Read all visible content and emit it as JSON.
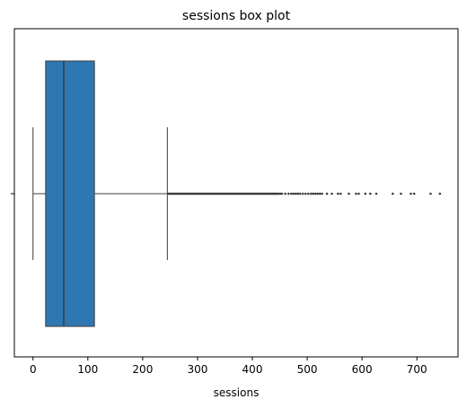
{
  "chart_data": {
    "type": "box",
    "title": "sessions box plot",
    "xlabel": "sessions",
    "ylabel": "",
    "orientation": "horizontal",
    "xlim": [
      -34,
      775
    ],
    "xticks": [
      0,
      100,
      200,
      300,
      400,
      500,
      600,
      700
    ],
    "xtick_labels": [
      "0",
      "100",
      "200",
      "300",
      "400",
      "500",
      "600",
      "700"
    ],
    "grid": false,
    "box": {
      "whisker_low": 0,
      "q1": 23,
      "median": 56,
      "q3": 112,
      "whisker_high": 245
    },
    "outliers": [
      247,
      249,
      251,
      253,
      255,
      257,
      259,
      261,
      263,
      265,
      267,
      269,
      271,
      273,
      275,
      277,
      279,
      281,
      283,
      285,
      287,
      289,
      291,
      293,
      295,
      297,
      299,
      301,
      303,
      305,
      307,
      309,
      311,
      313,
      315,
      317,
      319,
      321,
      323,
      325,
      327,
      329,
      331,
      333,
      335,
      337,
      339,
      341,
      343,
      345,
      347,
      349,
      351,
      353,
      355,
      357,
      359,
      361,
      363,
      365,
      367,
      369,
      371,
      373,
      375,
      377,
      379,
      381,
      383,
      385,
      387,
      389,
      391,
      393,
      395,
      397,
      399,
      401,
      403,
      405,
      407,
      409,
      411,
      413,
      415,
      417,
      419,
      421,
      423,
      425,
      427,
      429,
      431,
      433,
      435,
      437,
      439,
      441,
      443,
      445,
      448,
      451,
      454,
      460,
      466,
      471,
      475,
      479,
      483,
      487,
      492,
      497,
      502,
      507,
      511,
      515,
      519,
      523,
      527,
      536,
      545,
      556,
      561,
      576,
      589,
      594,
      606,
      615,
      626,
      656,
      671,
      689,
      695,
      725,
      742
    ],
    "colors": {
      "box_fill": "#2f77b1",
      "lines": "#3d3d3d",
      "axes": "#000000"
    }
  }
}
